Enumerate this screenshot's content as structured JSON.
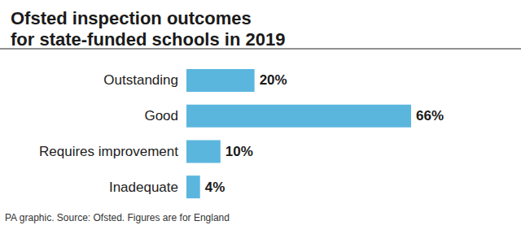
{
  "chart_data": {
    "type": "bar",
    "title": "Ofsted inspection outcomes\nfor state-funded schools in 2019",
    "source": "PA graphic. Source: Ofsted. Figures are for England",
    "categories": [
      "Outstanding",
      "Good",
      "Requires improvement",
      "Inadequate"
    ],
    "values": [
      20,
      66,
      10,
      4
    ],
    "value_labels": [
      "20%",
      "66%",
      "10%",
      "4%"
    ],
    "color": "#5bb6de",
    "orientation": "horizontal",
    "xlim": [
      0,
      66
    ],
    "data_labels": true,
    "tick_labels": "y",
    "grid": false
  }
}
